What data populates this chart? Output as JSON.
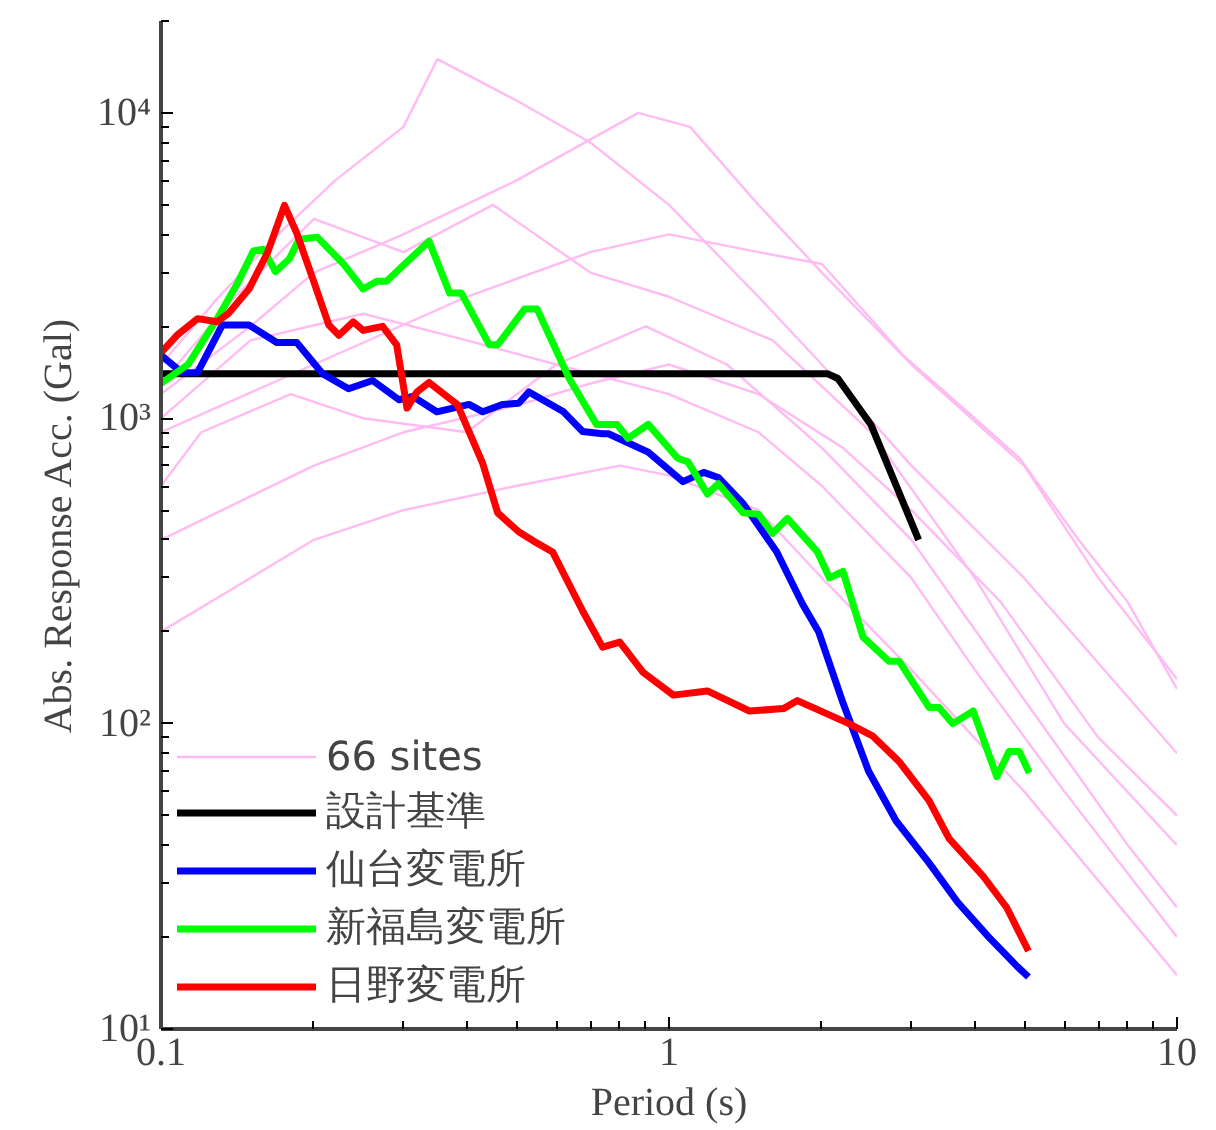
{
  "chart_data": {
    "type": "line",
    "xlabel": "Period (s)",
    "ylabel": "Abs. Response Acc. (Gal)",
    "log": "xy",
    "xlim": [
      0.1,
      10
    ],
    "ylim": [
      10,
      20000
    ],
    "xticks": [
      0.1,
      1,
      10
    ],
    "yticks": [
      {
        "value": 10,
        "label": "10¹"
      },
      {
        "value": 100,
        "label": "10²"
      },
      {
        "value": 1000,
        "label": "10³"
      },
      {
        "value": 10000,
        "label": "10⁴"
      }
    ],
    "grid": false,
    "legend": "bottom left",
    "marker": "none",
    "line_style": "solid",
    "series": [
      {
        "name": "66 sites",
        "color": "#ffbcf2",
        "x": [
          0.1,
          0.13,
          0.17,
          0.22,
          0.3,
          0.35,
          0.5,
          0.7,
          1,
          1.5,
          2,
          3,
          5,
          10
        ],
        "values": [
          1500,
          2500,
          4000,
          6000,
          9000,
          15000,
          11000,
          8000,
          5000,
          2500,
          1500,
          700,
          300,
          80
        ]
      },
      {
        "color": "#ffbcf2",
        "x": [
          0.1,
          0.15,
          0.2,
          0.3,
          0.5,
          0.87,
          1.1,
          1.5,
          2,
          3,
          5,
          7,
          10
        ],
        "values": [
          1200,
          2000,
          3000,
          4000,
          6000,
          10000,
          9000,
          5000,
          3000,
          1500,
          700,
          300,
          140
        ]
      },
      {
        "color": "#ffbcf2",
        "x": [
          0.1,
          0.2,
          0.4,
          0.7,
          1,
          1.5,
          2,
          2.9,
          4,
          4.9,
          6.4,
          8,
          10
        ],
        "values": [
          900,
          1500,
          2500,
          3500,
          4000,
          3500,
          3200,
          1600,
          1000,
          740,
          400,
          250,
          130
        ]
      },
      {
        "color": "#ffbcf2",
        "x": [
          0.1,
          0.15,
          0.2,
          0.3,
          0.5,
          0.8,
          1,
          1.5,
          2,
          3,
          5,
          10
        ],
        "values": [
          200,
          300,
          400,
          500,
          600,
          700,
          650,
          500,
          300,
          150,
          60,
          15
        ]
      },
      {
        "color": "#ffbcf2",
        "x": [
          0.1,
          0.15,
          0.25,
          0.4,
          0.6,
          1,
          1.5,
          2,
          3,
          4,
          6,
          10
        ],
        "values": [
          1000,
          1800,
          2200,
          1800,
          1500,
          1200,
          900,
          600,
          300,
          150,
          60,
          20
        ]
      },
      {
        "color": "#ffbcf2",
        "x": [
          0.1,
          0.12,
          0.18,
          0.25,
          0.4,
          0.6,
          0.9,
          1.3,
          2,
          3,
          5,
          8,
          10
        ],
        "values": [
          600,
          900,
          1200,
          1000,
          900,
          1500,
          2000,
          1500,
          800,
          400,
          120,
          40,
          25
        ]
      },
      {
        "color": "#ffbcf2",
        "x": [
          0.1,
          0.14,
          0.2,
          0.3,
          0.45,
          0.7,
          1,
          1.6,
          2.5,
          4,
          6,
          10
        ],
        "values": [
          1300,
          2500,
          4500,
          3500,
          5000,
          3000,
          2500,
          1800,
          900,
          300,
          100,
          40
        ]
      },
      {
        "color": "#ffbcf2",
        "x": [
          0.1,
          0.2,
          0.3,
          0.5,
          0.7,
          1,
          1.5,
          2.2,
          3,
          4.5,
          7,
          10
        ],
        "values": [
          400,
          700,
          900,
          1100,
          1300,
          1500,
          1200,
          800,
          500,
          250,
          90,
          50
        ]
      },
      {
        "name": "設計基準",
        "color": "#000000",
        "x": [
          0.1,
          2.05,
          2.15,
          2.5,
          3.1
        ],
        "values": [
          1400,
          1400,
          1350,
          950,
          400
        ]
      },
      {
        "name": "仙台変電所",
        "color": "#0000ff",
        "x": [
          0.1,
          0.11,
          0.118,
          0.132,
          0.149,
          0.169,
          0.185,
          0.208,
          0.234,
          0.261,
          0.294,
          0.313,
          0.349,
          0.404,
          0.43,
          0.47,
          0.506,
          0.53,
          0.62,
          0.676,
          0.74,
          0.76,
          0.91,
          1.065,
          1.17,
          1.25,
          1.4,
          1.63,
          1.83,
          1.97,
          2.2,
          2.47,
          2.8,
          3.25,
          3.7,
          4.26,
          4.85,
          5.1
        ],
        "values": [
          1610,
          1410,
          1410,
          2020,
          2020,
          1770,
          1770,
          1400,
          1250,
          1330,
          1150,
          1180,
          1050,
          1110,
          1050,
          1110,
          1120,
          1220,
          1050,
          905,
          890,
          890,
          775,
          620,
          665,
          640,
          525,
          365,
          247,
          200,
          117,
          70,
          48,
          35,
          26,
          20,
          16,
          14.8
        ]
      },
      {
        "name": "新福島変電所",
        "color": "#00ff00",
        "x": [
          0.1,
          0.113,
          0.129,
          0.141,
          0.152,
          0.159,
          0.168,
          0.179,
          0.187,
          0.203,
          0.228,
          0.25,
          0.266,
          0.278,
          0.3,
          0.337,
          0.37,
          0.39,
          0.443,
          0.46,
          0.52,
          0.55,
          0.636,
          0.72,
          0.79,
          0.83,
          0.91,
          1.04,
          1.09,
          1.19,
          1.25,
          1.4,
          1.5,
          1.6,
          1.71,
          1.96,
          2.07,
          2.2,
          2.41,
          2.71,
          2.84,
          3.25,
          3.4,
          3.62,
          3.97,
          4.42,
          4.67,
          4.89,
          5.12
        ],
        "values": [
          1300,
          1500,
          2120,
          2740,
          3530,
          3580,
          3020,
          3330,
          3860,
          3920,
          3220,
          2650,
          2810,
          2810,
          3170,
          3800,
          2570,
          2570,
          1740,
          1740,
          2280,
          2280,
          1350,
          955,
          955,
          860,
          955,
          740,
          720,
          565,
          610,
          490,
          485,
          420,
          470,
          365,
          300,
          315,
          192,
          160,
          160,
          113,
          113,
          100,
          110,
          67,
          81,
          81,
          69
        ]
      },
      {
        "name": "日野変電所",
        "color": "#ff0000",
        "x": [
          0.1,
          0.1075,
          0.118,
          0.129,
          0.136,
          0.149,
          0.162,
          0.175,
          0.185,
          0.199,
          0.214,
          0.224,
          0.239,
          0.25,
          0.273,
          0.291,
          0.305,
          0.319,
          0.337,
          0.383,
          0.43,
          0.46,
          0.506,
          0.55,
          0.59,
          0.677,
          0.74,
          0.8,
          0.89,
          1.02,
          1.19,
          1.44,
          1.68,
          1.79,
          2.26,
          2.52,
          2.84,
          3.25,
          3.56,
          4.15,
          4.62,
          5.1
        ],
        "values": [
          1640,
          1870,
          2120,
          2070,
          2210,
          2650,
          3480,
          4980,
          4040,
          2860,
          2020,
          1870,
          2070,
          1940,
          2000,
          1740,
          1080,
          1220,
          1310,
          1110,
          710,
          490,
          425,
          390,
          365,
          233,
          178,
          185,
          147,
          124,
          128,
          110,
          112,
          119,
          100,
          91,
          75,
          56,
          42,
          31.7,
          25,
          18
        ]
      }
    ]
  }
}
